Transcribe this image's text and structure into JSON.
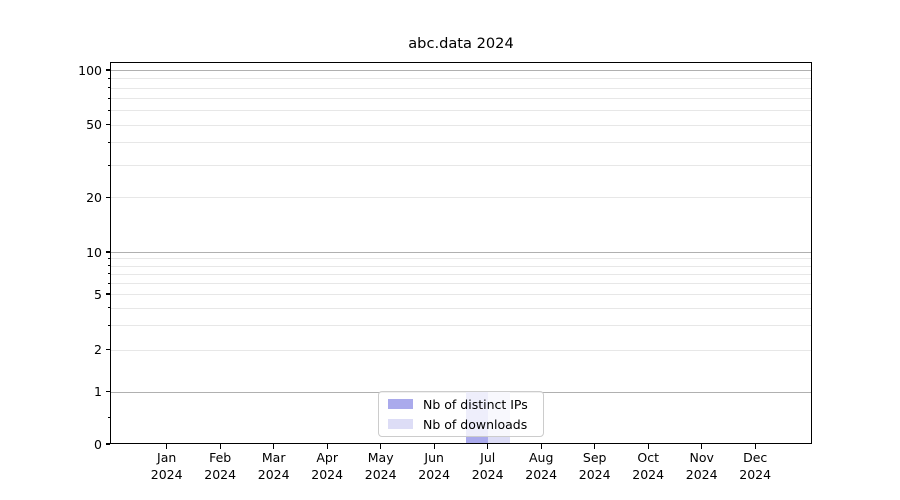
{
  "title": "abc.data 2024",
  "axes": {
    "y_tick_labels": [
      "100",
      "50",
      "20",
      "10",
      "5",
      "2",
      "1",
      "0"
    ],
    "x_tick_months": [
      "Jan",
      "Feb",
      "Mar",
      "Apr",
      "May",
      "Jun",
      "Jul",
      "Aug",
      "Sep",
      "Oct",
      "Nov",
      "Dec"
    ],
    "x_tick_year": "2024"
  },
  "legend": {
    "items": [
      {
        "label": "Nb of distinct IPs",
        "color": "#aaaaec"
      },
      {
        "label": "Nb of downloads",
        "color": "#ddddf6"
      }
    ]
  },
  "colors": {
    "bar_distinct_ips": "#aaaaec",
    "bar_downloads": "#ddddf6",
    "grid_major": "#b0b0b0",
    "grid_minor": "#e7e7e7",
    "axis": "#000000",
    "legend_border": "#cccccc"
  },
  "chart_data": {
    "type": "bar",
    "title": "abc.data 2024",
    "categories": [
      "Jan 2024",
      "Feb 2024",
      "Mar 2024",
      "Apr 2024",
      "May 2024",
      "Jun 2024",
      "Jul 2024",
      "Aug 2024",
      "Sep 2024",
      "Oct 2024",
      "Nov 2024",
      "Dec 2024"
    ],
    "series": [
      {
        "name": "Nb of distinct IPs",
        "color": "#aaaaec",
        "values": [
          0,
          0,
          0,
          0,
          0,
          0,
          1,
          0,
          0,
          0,
          0,
          0
        ]
      },
      {
        "name": "Nb of downloads",
        "color": "#ddddf6",
        "values": [
          0,
          0,
          0,
          0,
          0,
          0,
          1,
          0,
          0,
          0,
          0,
          0
        ]
      }
    ],
    "ylabel": "",
    "xlabel": "",
    "yscale": "symlog",
    "ylim": [
      0,
      110
    ],
    "yticks": [
      100,
      50,
      20,
      10,
      5,
      2,
      1,
      0
    ],
    "grid": true,
    "legend_position": "lower center inside"
  }
}
